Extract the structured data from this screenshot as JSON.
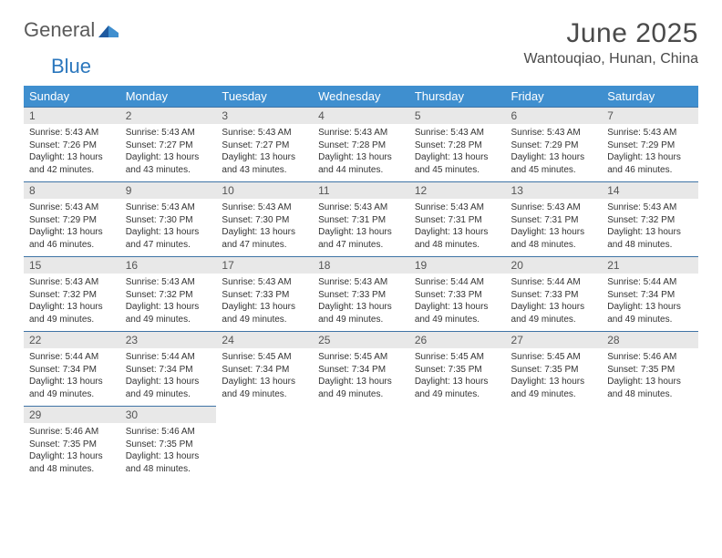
{
  "logo": {
    "general": "General",
    "blue": "Blue"
  },
  "title": "June 2025",
  "location": "Wantouqiao, Hunan, China",
  "colors": {
    "header_bg": "#3f8fcf",
    "header_text": "#ffffff",
    "row_divider": "#3f74a6",
    "daynum_bg": "#e8e8e8",
    "text": "#333333",
    "logo_gray": "#5a5a5a",
    "logo_blue": "#2b77bd"
  },
  "weekdays": [
    "Sunday",
    "Monday",
    "Tuesday",
    "Wednesday",
    "Thursday",
    "Friday",
    "Saturday"
  ],
  "weeks": [
    [
      {
        "n": "1",
        "sr": "5:43 AM",
        "ss": "7:26 PM",
        "dl": "13 hours and 42 minutes."
      },
      {
        "n": "2",
        "sr": "5:43 AM",
        "ss": "7:27 PM",
        "dl": "13 hours and 43 minutes."
      },
      {
        "n": "3",
        "sr": "5:43 AM",
        "ss": "7:27 PM",
        "dl": "13 hours and 43 minutes."
      },
      {
        "n": "4",
        "sr": "5:43 AM",
        "ss": "7:28 PM",
        "dl": "13 hours and 44 minutes."
      },
      {
        "n": "5",
        "sr": "5:43 AM",
        "ss": "7:28 PM",
        "dl": "13 hours and 45 minutes."
      },
      {
        "n": "6",
        "sr": "5:43 AM",
        "ss": "7:29 PM",
        "dl": "13 hours and 45 minutes."
      },
      {
        "n": "7",
        "sr": "5:43 AM",
        "ss": "7:29 PM",
        "dl": "13 hours and 46 minutes."
      }
    ],
    [
      {
        "n": "8",
        "sr": "5:43 AM",
        "ss": "7:29 PM",
        "dl": "13 hours and 46 minutes."
      },
      {
        "n": "9",
        "sr": "5:43 AM",
        "ss": "7:30 PM",
        "dl": "13 hours and 47 minutes."
      },
      {
        "n": "10",
        "sr": "5:43 AM",
        "ss": "7:30 PM",
        "dl": "13 hours and 47 minutes."
      },
      {
        "n": "11",
        "sr": "5:43 AM",
        "ss": "7:31 PM",
        "dl": "13 hours and 47 minutes."
      },
      {
        "n": "12",
        "sr": "5:43 AM",
        "ss": "7:31 PM",
        "dl": "13 hours and 48 minutes."
      },
      {
        "n": "13",
        "sr": "5:43 AM",
        "ss": "7:31 PM",
        "dl": "13 hours and 48 minutes."
      },
      {
        "n": "14",
        "sr": "5:43 AM",
        "ss": "7:32 PM",
        "dl": "13 hours and 48 minutes."
      }
    ],
    [
      {
        "n": "15",
        "sr": "5:43 AM",
        "ss": "7:32 PM",
        "dl": "13 hours and 49 minutes."
      },
      {
        "n": "16",
        "sr": "5:43 AM",
        "ss": "7:32 PM",
        "dl": "13 hours and 49 minutes."
      },
      {
        "n": "17",
        "sr": "5:43 AM",
        "ss": "7:33 PM",
        "dl": "13 hours and 49 minutes."
      },
      {
        "n": "18",
        "sr": "5:43 AM",
        "ss": "7:33 PM",
        "dl": "13 hours and 49 minutes."
      },
      {
        "n": "19",
        "sr": "5:44 AM",
        "ss": "7:33 PM",
        "dl": "13 hours and 49 minutes."
      },
      {
        "n": "20",
        "sr": "5:44 AM",
        "ss": "7:33 PM",
        "dl": "13 hours and 49 minutes."
      },
      {
        "n": "21",
        "sr": "5:44 AM",
        "ss": "7:34 PM",
        "dl": "13 hours and 49 minutes."
      }
    ],
    [
      {
        "n": "22",
        "sr": "5:44 AM",
        "ss": "7:34 PM",
        "dl": "13 hours and 49 minutes."
      },
      {
        "n": "23",
        "sr": "5:44 AM",
        "ss": "7:34 PM",
        "dl": "13 hours and 49 minutes."
      },
      {
        "n": "24",
        "sr": "5:45 AM",
        "ss": "7:34 PM",
        "dl": "13 hours and 49 minutes."
      },
      {
        "n": "25",
        "sr": "5:45 AM",
        "ss": "7:34 PM",
        "dl": "13 hours and 49 minutes."
      },
      {
        "n": "26",
        "sr": "5:45 AM",
        "ss": "7:35 PM",
        "dl": "13 hours and 49 minutes."
      },
      {
        "n": "27",
        "sr": "5:45 AM",
        "ss": "7:35 PM",
        "dl": "13 hours and 49 minutes."
      },
      {
        "n": "28",
        "sr": "5:46 AM",
        "ss": "7:35 PM",
        "dl": "13 hours and 48 minutes."
      }
    ],
    [
      {
        "n": "29",
        "sr": "5:46 AM",
        "ss": "7:35 PM",
        "dl": "13 hours and 48 minutes."
      },
      {
        "n": "30",
        "sr": "5:46 AM",
        "ss": "7:35 PM",
        "dl": "13 hours and 48 minutes."
      },
      null,
      null,
      null,
      null,
      null
    ]
  ],
  "labels": {
    "sunrise": "Sunrise: ",
    "sunset": "Sunset: ",
    "daylight": "Daylight: "
  }
}
